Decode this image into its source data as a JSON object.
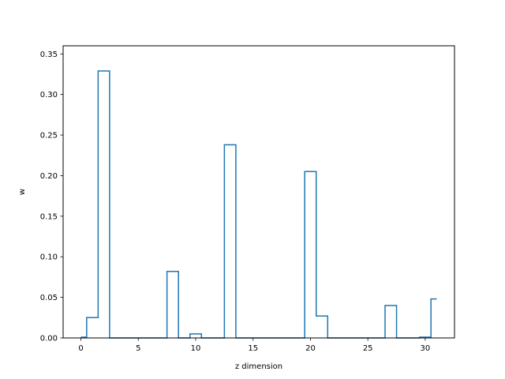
{
  "chart_data": {
    "type": "line",
    "drawstyle": "steps-mid",
    "title": "",
    "xlabel": "z dimension",
    "ylabel": "w",
    "xlim": [
      -1.55,
      32.55
    ],
    "ylim": [
      0,
      0.36
    ],
    "xticks": [
      0,
      5,
      10,
      15,
      20,
      25,
      30
    ],
    "yticks": [
      0.0,
      0.05,
      0.1,
      0.15,
      0.2,
      0.25,
      0.3,
      0.35
    ],
    "ytick_labels": [
      "0.00",
      "0.05",
      "0.10",
      "0.15",
      "0.20",
      "0.25",
      "0.30",
      "0.35"
    ],
    "grid": false,
    "color": "#1f77b4",
    "series": [
      {
        "x": [
          0,
          1,
          2,
          3,
          4,
          5,
          6,
          7,
          8,
          9,
          10,
          11,
          12,
          13,
          14,
          15,
          16,
          17,
          18,
          19,
          20,
          21,
          22,
          23,
          24,
          25,
          26,
          27,
          28,
          29,
          30,
          31
        ],
        "values": [
          0.001,
          0.025,
          0.329,
          0,
          0,
          0,
          0,
          0,
          0.082,
          0,
          0.005,
          0,
          0,
          0.238,
          0,
          0,
          0,
          0,
          0,
          0,
          0.205,
          0.027,
          0,
          0,
          0,
          0,
          0,
          0.04,
          0,
          0,
          0.001,
          0.048
        ]
      }
    ]
  }
}
